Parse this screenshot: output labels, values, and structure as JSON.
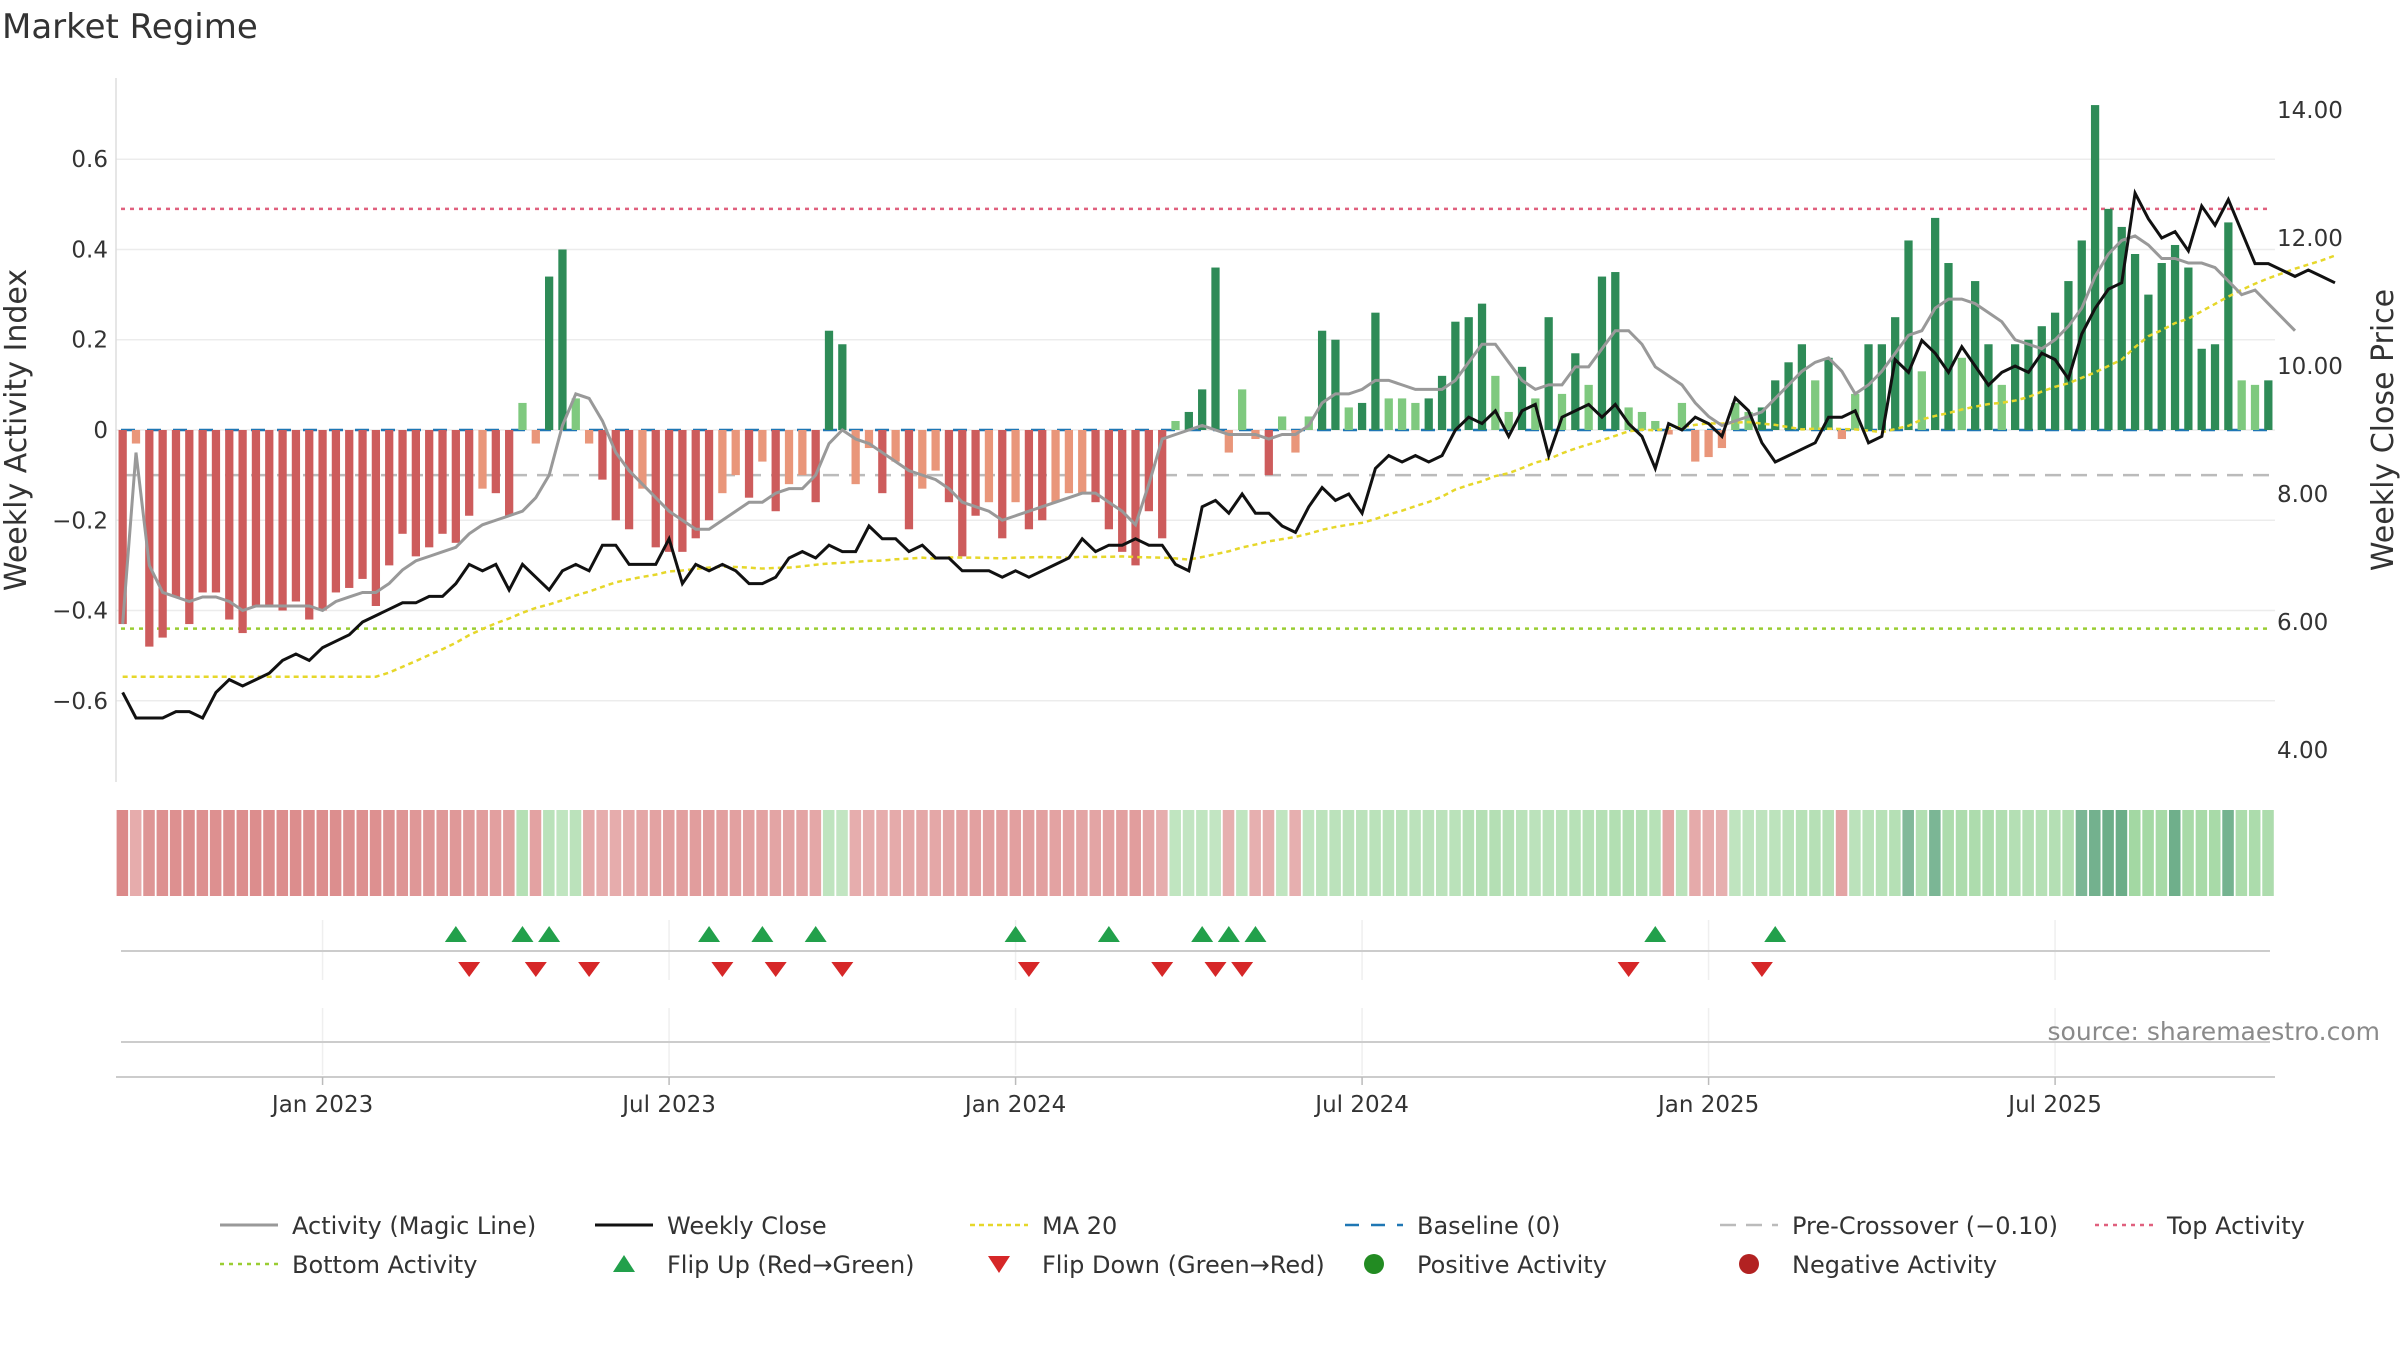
{
  "chart_data": {
    "type": "bar",
    "title": "Market Regime",
    "ylabel": "Weekly Activity Index",
    "y2label": "Weekly Close Price",
    "ylim": [
      -0.78,
      0.78
    ],
    "y2lim": [
      3.5,
      14.5
    ],
    "y_ticks": [
      "0.6",
      "0.4",
      "0.2",
      "0",
      "−0.2",
      "−0.4",
      "−0.6"
    ],
    "y_tick_values": [
      0.6,
      0.4,
      0.2,
      0,
      -0.2,
      -0.4,
      -0.6
    ],
    "y2_ticks": [
      "14.00",
      "12.00",
      "10.00",
      "8.00",
      "6.00",
      "4.00"
    ],
    "y2_tick_values": [
      14,
      12,
      10,
      8,
      6,
      4
    ],
    "x_ticks": [
      "Jan 2023",
      "Jul 2023",
      "Jan 2024",
      "Jul 2024",
      "Jan 2025",
      "Jul 2025"
    ],
    "x_tick_weeks": [
      15,
      41,
      67,
      93,
      119,
      145
    ],
    "top_activity": 0.49,
    "bottom_activity": -0.44,
    "pre_crossover": -0.1,
    "baseline": 0,
    "flip_up_weeks": [
      25,
      30,
      32,
      44,
      48,
      52,
      67,
      74,
      81,
      83,
      85,
      115,
      124
    ],
    "flip_down_weeks": [
      26,
      31,
      35,
      45,
      49,
      54,
      68,
      78,
      82,
      84,
      113,
      123
    ],
    "activity": [
      -0.43,
      -0.03,
      -0.48,
      -0.46,
      -0.37,
      -0.43,
      -0.36,
      -0.36,
      -0.42,
      -0.45,
      -0.39,
      -0.39,
      -0.4,
      -0.38,
      -0.42,
      -0.4,
      -0.36,
      -0.35,
      -0.33,
      -0.39,
      -0.3,
      -0.23,
      -0.28,
      -0.26,
      -0.23,
      -0.25,
      -0.19,
      -0.13,
      -0.14,
      -0.19,
      0.06,
      -0.03,
      0.34,
      0.4,
      0.07,
      -0.03,
      -0.11,
      -0.2,
      -0.22,
      -0.13,
      -0.26,
      -0.27,
      -0.27,
      -0.24,
      -0.2,
      -0.14,
      -0.1,
      -0.15,
      -0.07,
      -0.18,
      -0.12,
      -0.1,
      -0.16,
      0.22,
      0.19,
      -0.12,
      -0.04,
      -0.14,
      -0.07,
      -0.22,
      -0.13,
      -0.09,
      -0.16,
      -0.28,
      -0.19,
      -0.16,
      -0.24,
      -0.16,
      -0.22,
      -0.2,
      -0.16,
      -0.14,
      -0.14,
      -0.16,
      -0.22,
      -0.27,
      -0.3,
      -0.18,
      -0.24,
      0.02,
      0.04,
      0.09,
      0.36,
      -0.05,
      0.09,
      -0.02,
      -0.1,
      0.03,
      -0.05,
      0.03,
      0.22,
      0.2,
      0.05,
      0.06,
      0.26,
      0.07,
      0.07,
      0.06,
      0.07,
      0.12,
      0.24,
      0.25,
      0.28,
      0.12,
      0.04,
      0.14,
      0.07,
      0.25,
      0.08,
      0.17,
      0.1,
      0.34,
      0.35,
      0.05,
      0.04,
      0.02,
      -0.01,
      0.06,
      -0.07,
      -0.06,
      -0.04,
      0.06,
      0.04,
      0.05,
      0.11,
      0.15,
      0.19,
      0.11,
      0.16,
      -0.02,
      0.08,
      0.19,
      0.19,
      0.25,
      0.42,
      0.13,
      0.47,
      0.37,
      0.16,
      0.33,
      0.19,
      0.1,
      0.19,
      0.2,
      0.23,
      0.26,
      0.33,
      0.42,
      0.72,
      0.49,
      0.45,
      0.39,
      0.3,
      0.37,
      0.41,
      0.36,
      0.18,
      0.19,
      0.46,
      0.11,
      0.1,
      0.11
    ],
    "magic_line": [
      -0.43,
      -0.05,
      -0.3,
      -0.36,
      -0.37,
      -0.38,
      -0.37,
      -0.37,
      -0.38,
      -0.4,
      -0.39,
      -0.39,
      -0.39,
      -0.39,
      -0.39,
      -0.4,
      -0.38,
      -0.37,
      -0.36,
      -0.36,
      -0.34,
      -0.31,
      -0.29,
      -0.28,
      -0.27,
      -0.26,
      -0.23,
      -0.21,
      -0.2,
      -0.19,
      -0.18,
      -0.15,
      -0.1,
      0.01,
      0.08,
      0.07,
      0.02,
      -0.05,
      -0.09,
      -0.12,
      -0.15,
      -0.18,
      -0.2,
      -0.22,
      -0.22,
      -0.2,
      -0.18,
      -0.16,
      -0.16,
      -0.14,
      -0.13,
      -0.13,
      -0.1,
      -0.03,
      0.0,
      -0.02,
      -0.03,
      -0.05,
      -0.07,
      -0.09,
      -0.1,
      -0.11,
      -0.13,
      -0.16,
      -0.17,
      -0.18,
      -0.2,
      -0.19,
      -0.18,
      -0.17,
      -0.16,
      -0.15,
      -0.14,
      -0.14,
      -0.16,
      -0.18,
      -0.21,
      -0.12,
      -0.02,
      -0.01,
      0.0,
      0.01,
      0.0,
      -0.01,
      -0.01,
      -0.01,
      -0.02,
      -0.01,
      -0.01,
      0.01,
      0.06,
      0.08,
      0.08,
      0.09,
      0.11,
      0.11,
      0.1,
      0.09,
      0.09,
      0.09,
      0.11,
      0.15,
      0.19,
      0.19,
      0.15,
      0.11,
      0.09,
      0.1,
      0.1,
      0.14,
      0.14,
      0.18,
      0.22,
      0.22,
      0.19,
      0.14,
      0.12,
      0.1,
      0.06,
      0.03,
      0.01,
      0.02,
      0.03,
      0.04,
      0.07,
      0.1,
      0.13,
      0.15,
      0.16,
      0.13,
      0.08,
      0.1,
      0.13,
      0.17,
      0.21,
      0.22,
      0.27,
      0.29,
      0.29,
      0.28,
      0.26,
      0.24,
      0.2,
      0.19,
      0.18,
      0.2,
      0.23,
      0.27,
      0.34,
      0.39,
      0.42,
      0.43,
      0.41,
      0.38,
      0.38,
      0.37,
      0.37,
      0.36,
      0.33,
      0.3,
      0.31,
      0.28,
      0.25,
      0.22
    ],
    "weekly_close": [
      4.9,
      4.5,
      4.5,
      4.5,
      4.6,
      4.6,
      4.5,
      4.9,
      5.1,
      5.0,
      5.1,
      5.2,
      5.4,
      5.5,
      5.4,
      5.6,
      5.7,
      5.8,
      6.0,
      6.1,
      6.2,
      6.3,
      6.3,
      6.4,
      6.4,
      6.6,
      6.9,
      6.8,
      6.9,
      6.5,
      6.9,
      6.7,
      6.5,
      6.8,
      6.9,
      6.8,
      7.2,
      7.2,
      6.9,
      6.9,
      6.9,
      7.3,
      6.6,
      6.9,
      6.8,
      6.9,
      6.8,
      6.6,
      6.6,
      6.7,
      7.0,
      7.1,
      7.0,
      7.2,
      7.1,
      7.1,
      7.5,
      7.3,
      7.3,
      7.1,
      7.2,
      7.0,
      7.0,
      6.8,
      6.8,
      6.8,
      6.7,
      6.8,
      6.7,
      6.8,
      6.9,
      7.0,
      7.3,
      7.1,
      7.2,
      7.2,
      7.3,
      7.2,
      7.2,
      6.9,
      6.8,
      7.8,
      7.9,
      7.7,
      8.0,
      7.7,
      7.7,
      7.5,
      7.4,
      7.8,
      8.1,
      7.9,
      8.0,
      7.7,
      8.4,
      8.6,
      8.5,
      8.6,
      8.5,
      8.6,
      9.0,
      9.2,
      9.1,
      9.3,
      8.9,
      9.3,
      9.4,
      8.6,
      9.2,
      9.3,
      9.4,
      9.2,
      9.4,
      9.1,
      8.9,
      8.4,
      9.1,
      9.0,
      9.2,
      9.1,
      8.9,
      9.5,
      9.3,
      8.8,
      8.5,
      8.6,
      8.7,
      8.8,
      9.2,
      9.2,
      9.3,
      8.8,
      8.9,
      10.1,
      9.9,
      10.4,
      10.2,
      9.9,
      10.3,
      10.0,
      9.7,
      9.9,
      10.0,
      9.9,
      10.2,
      10.1,
      9.8,
      10.5,
      10.9,
      11.2,
      11.3,
      12.7,
      12.3,
      12.0,
      12.1,
      11.8,
      12.5,
      12.2,
      12.6,
      12.1,
      11.6,
      11.6,
      11.5,
      11.4,
      11.5,
      11.4,
      11.3
    ],
    "legend": [
      {
        "key": "magic",
        "label": "Activity (Magic Line)"
      },
      {
        "key": "close",
        "label": "Weekly Close"
      },
      {
        "key": "ma20",
        "label": "MA 20"
      },
      {
        "key": "baseline",
        "label": "Baseline (0)"
      },
      {
        "key": "precross",
        "label": "Pre-Crossover (−0.10)"
      },
      {
        "key": "top",
        "label": "Top Activity"
      },
      {
        "key": "bottom",
        "label": "Bottom Activity"
      },
      {
        "key": "flipup",
        "label": "Flip Up (Red→Green)"
      },
      {
        "key": "flipdown",
        "label": "Flip Down (Green→Red)"
      },
      {
        "key": "pos",
        "label": "Positive Activity"
      },
      {
        "key": "neg",
        "label": "Negative Activity"
      }
    ],
    "source": "source: sharemaestro.com"
  },
  "colors": {
    "pos_strong": "#2e8b57",
    "pos_light": "#7fc97f",
    "neg_strong": "#cd5c5c",
    "neg_light": "#e9967a",
    "magic_line": "#999999",
    "close_line": "#111111",
    "ma20": "#e6d72a",
    "baseline": "#1f77b4",
    "precross": "#bbbbbb",
    "top_activity": "#e0607e",
    "bottom_activity": "#9acd32",
    "flip_up": "#22a04b",
    "flip_down": "#d62728",
    "pos_marker": "#228b22",
    "neg_marker": "#b22222"
  }
}
